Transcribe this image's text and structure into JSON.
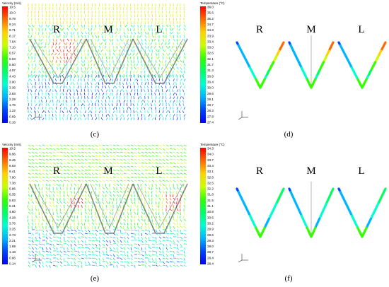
{
  "panels": [
    {
      "id": "c",
      "caption": "(c)",
      "zones": [
        "R",
        "M",
        "L"
      ],
      "colorbar_title": "Velocity (m/s)",
      "ticks": [
        "10.5",
        "10.0",
        "9.78",
        "9.24",
        "8.71",
        "8.17",
        "7.64",
        "7.10",
        "6.57",
        "6.03",
        "5.50",
        "4.97",
        "4.43",
        "3.90",
        "3.36",
        "2.83",
        "2.29",
        "1.76",
        "1.22",
        "0.69",
        "0.16"
      ]
    },
    {
      "id": "d",
      "caption": "(d)",
      "zones": [
        "R",
        "M",
        "L"
      ],
      "colorbar_title": "Temperature (°C)",
      "ticks": [
        "36.0",
        "35.6",
        "35.2",
        "34.7",
        "34.3",
        "33.9",
        "33.4",
        "33.0",
        "32.6",
        "32.1",
        "31.7",
        "31.3",
        "30.8",
        "30.4",
        "30.0",
        "29.6",
        "29.1",
        "28.7",
        "28.3",
        "27.8",
        "27.4"
      ]
    },
    {
      "id": "e",
      "caption": "(e)",
      "zones": [
        "R",
        "M",
        "L"
      ],
      "colorbar_title": "Velocity (m/s)",
      "ticks": [
        "10.5",
        "9.96",
        "9.45",
        "8.93",
        "8.41",
        "7.90",
        "7.38",
        "6.86",
        "6.35",
        "5.83",
        "5.31",
        "4.80",
        "4.28",
        "3.76",
        "3.25",
        "2.73",
        "2.21",
        "1.69",
        "1.18",
        "0.66",
        "0.14"
      ]
    },
    {
      "id": "f",
      "caption": "(f)",
      "zones": [
        "R",
        "M",
        "L"
      ],
      "colorbar_title": "Temperature (°C)",
      "ticks": [
        "34.3",
        "34.0",
        "33.7",
        "33.4",
        "33.1",
        "32.8",
        "32.5",
        "32.2",
        "31.8",
        "31.5",
        "31.1",
        "30.8",
        "30.5",
        "30.2",
        "29.9",
        "29.6",
        "29.3",
        "29.0",
        "28.7",
        "28.4",
        "28.4"
      ]
    }
  ],
  "colors": {
    "scale": [
      "#ff0000",
      "#ff6a00",
      "#ffd200",
      "#c8ff00",
      "#32ff00",
      "#00ff64",
      "#00ffd2",
      "#00b4ff",
      "#0046ff",
      "#0000ff"
    ]
  }
}
